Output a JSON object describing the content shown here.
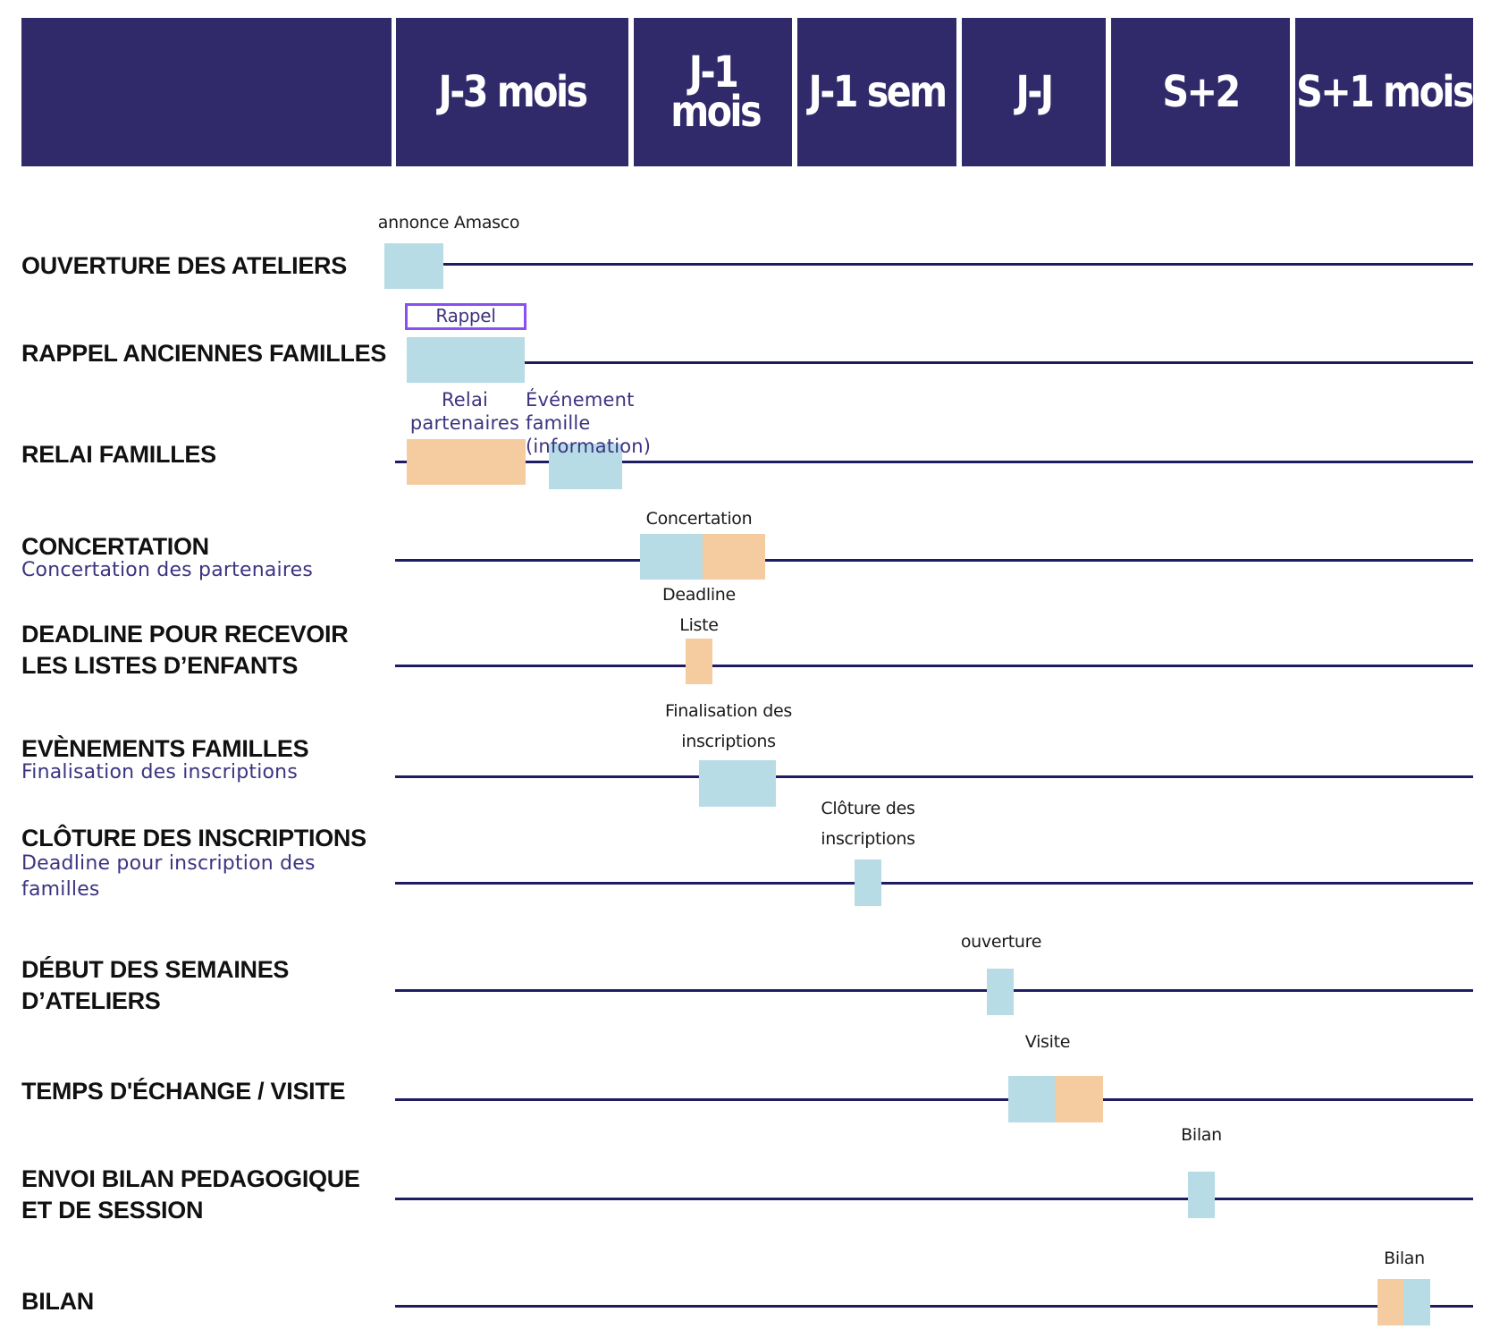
{
  "colors": {
    "header_bg": "#302a6b",
    "line": "#1e1d63",
    "blue_bar": "#b7dce6",
    "orange_bar": "#f5cba0",
    "subtitle": "#3b3481",
    "highlight_border": "#8a4ff0"
  },
  "header": {
    "columns": [
      "",
      "J-3 mois",
      "J-1 mois",
      "J-1 sem",
      "J-J",
      "S+2",
      "S+1 mois"
    ]
  },
  "rows": [
    {
      "title": "OUVERTURE DES ATELIERS",
      "subtitle": "",
      "labels": [
        "annonce Amasco"
      ]
    },
    {
      "title": "RAPPEL ANCIENNES FAMILLES",
      "subtitle": "",
      "labels": [
        "Rappel"
      ]
    },
    {
      "title": "RELAI FAMILLES",
      "subtitle": "",
      "labels": [
        "Relai\npartenaires",
        "Événement famille\n(information)"
      ]
    },
    {
      "title": "CONCERTATION",
      "subtitle": "Concertation des partenaires",
      "labels": [
        "Concertation"
      ]
    },
    {
      "title": "DEADLINE POUR RECEVOIR\nLES LISTES D’ENFANTS",
      "subtitle": "",
      "labels": [
        "Deadline\nListe"
      ]
    },
    {
      "title": "EVÈNEMENTS FAMILLES",
      "subtitle": "Finalisation des inscriptions",
      "labels": [
        "Finalisation des\ninscriptions"
      ]
    },
    {
      "title": "CLÔTURE DES INSCRIPTIONS",
      "subtitle": "Deadline pour inscription des\nfamilles",
      "labels": [
        "Clôture des\ninscriptions"
      ]
    },
    {
      "title": "DÉBUT DES SEMAINES\nD’ATELIERS",
      "subtitle": "",
      "labels": [
        "ouverture"
      ]
    },
    {
      "title": "TEMPS D'ÉCHANGE / VISITE",
      "subtitle": "",
      "labels": [
        "Visite"
      ]
    },
    {
      "title": "ENVOI BILAN PEDAGOGIQUE\nET DE SESSION",
      "subtitle": "",
      "labels": [
        "Bilan"
      ]
    },
    {
      "title": "BILAN",
      "subtitle": "",
      "labels": [
        "Bilan"
      ]
    }
  ]
}
